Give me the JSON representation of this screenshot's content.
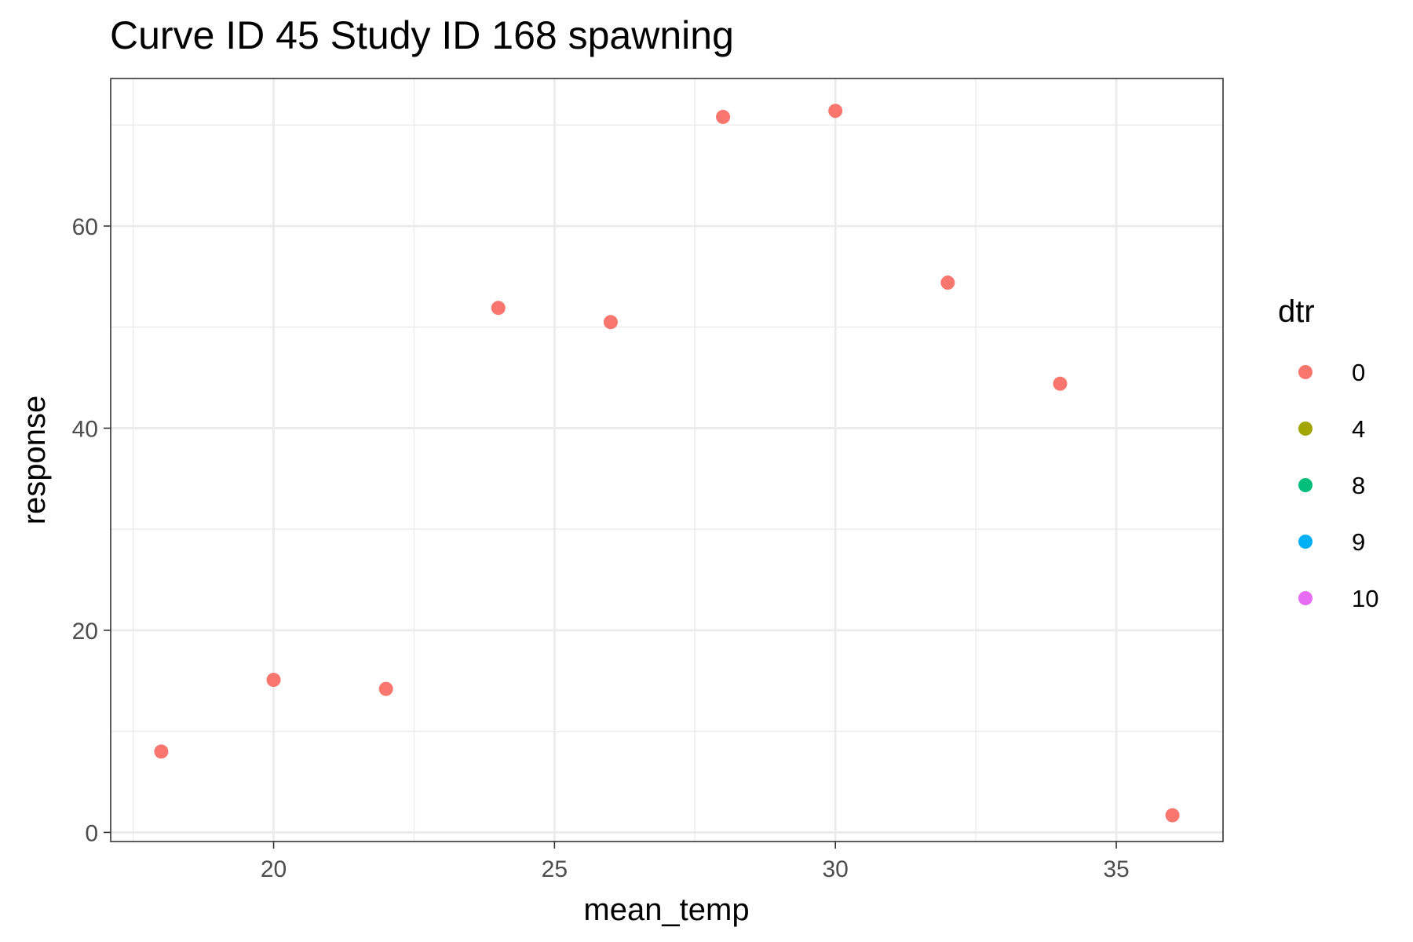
{
  "chart_data": {
    "type": "scatter",
    "title": "Curve ID 45 Study ID 168 spawning",
    "xlabel": "mean_temp",
    "ylabel": "response",
    "xlim": [
      17.1,
      36.9
    ],
    "ylim": [
      -0.9,
      74.6
    ],
    "x_ticks": [
      20,
      25,
      30,
      35
    ],
    "x_tick_labels": [
      "20",
      "25",
      "30",
      "35"
    ],
    "x_minor": [
      17.5,
      22.5,
      27.5,
      32.5
    ],
    "y_ticks": [
      0,
      20,
      40,
      60
    ],
    "y_tick_labels": [
      "0",
      "20",
      "40",
      "60"
    ],
    "y_minor": [
      10,
      30,
      50,
      70
    ],
    "grid": true,
    "legend": {
      "title": "dtr",
      "position": "right",
      "entries": [
        {
          "label": "0",
          "color": "#F8766D"
        },
        {
          "label": "4",
          "color": "#A3A500"
        },
        {
          "label": "8",
          "color": "#00BF7D"
        },
        {
          "label": "9",
          "color": "#00B0F6"
        },
        {
          "label": "10",
          "color": "#E76BF3"
        }
      ]
    },
    "series": [
      {
        "name": "0",
        "color": "#F8766D",
        "points": [
          {
            "x": 18,
            "y": 8.0
          },
          {
            "x": 20,
            "y": 15.1
          },
          {
            "x": 22,
            "y": 14.2
          },
          {
            "x": 24,
            "y": 51.9
          },
          {
            "x": 26,
            "y": 50.5
          },
          {
            "x": 28,
            "y": 70.8
          },
          {
            "x": 30,
            "y": 71.4
          },
          {
            "x": 32,
            "y": 54.4
          },
          {
            "x": 34,
            "y": 44.4
          },
          {
            "x": 36,
            "y": 1.7
          }
        ]
      }
    ]
  }
}
